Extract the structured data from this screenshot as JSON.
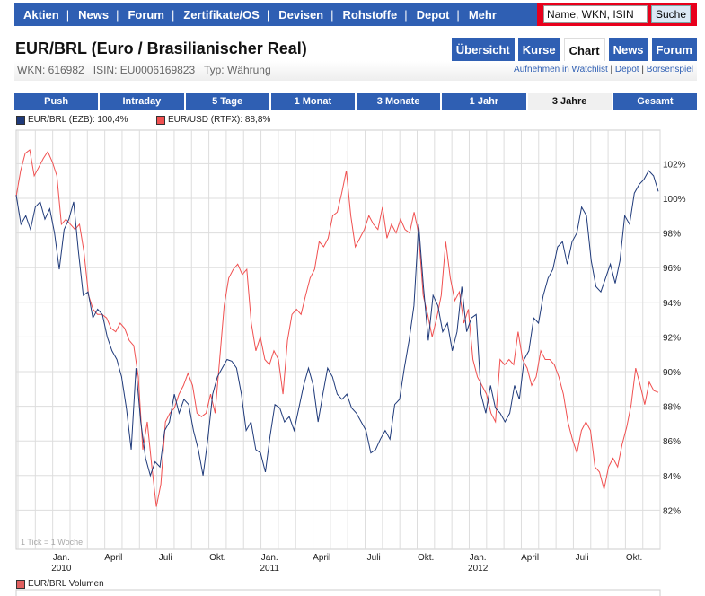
{
  "nav": {
    "items": [
      "Aktien",
      "News",
      "Forum",
      "Zertifikate/OS",
      "Devisen",
      "Rohstoffe",
      "Depot",
      "Mehr"
    ],
    "search_placeholder": "Name, WKN, ISIN",
    "search_button": "Suche"
  },
  "title": "EUR/BRL (Euro / Brasilianischer Real)",
  "tabs": [
    "Übersicht",
    "Kurse",
    "Chart",
    "News",
    "Forum"
  ],
  "active_tab": "Chart",
  "info": {
    "wkn": "WKN: 616982",
    "isin": "ISIN: EU0006169823",
    "typ": "Typ: Währung",
    "link_watchlist": "Aufnehmen in Watchlist",
    "link_depot": "Depot",
    "link_boersenspiel": "Börsenspiel"
  },
  "periods": [
    "Push",
    "Intraday",
    "5 Tage",
    "1 Monat",
    "3 Monate",
    "1 Jahr",
    "3 Jahre",
    "Gesamt"
  ],
  "active_period": "3 Jahre",
  "volume_legend": "EUR/BRL Volumen",
  "chart_data": {
    "type": "line",
    "ylim": [
      80.5,
      104
    ],
    "yticks": [
      82,
      84,
      86,
      88,
      90,
      92,
      94,
      96,
      98,
      100,
      102
    ],
    "ytick_labels": [
      "82%",
      "84%",
      "86%",
      "88%",
      "90%",
      "92%",
      "94%",
      "96%",
      "98%",
      "100%",
      "102%"
    ],
    "xticks": [
      {
        "label": "Jan.",
        "sub": "2010",
        "month": 3
      },
      {
        "label": "April",
        "month": 6
      },
      {
        "label": "Juli",
        "month": 9
      },
      {
        "label": "Okt.",
        "month": 12
      },
      {
        "label": "Jan.",
        "sub": "2011",
        "month": 15
      },
      {
        "label": "April",
        "month": 18
      },
      {
        "label": "Juli",
        "month": 21
      },
      {
        "label": "Okt.",
        "month": 24
      },
      {
        "label": "Jan.",
        "sub": "2012",
        "month": 27
      },
      {
        "label": "April",
        "month": 30
      },
      {
        "label": "Juli",
        "month": 33
      },
      {
        "label": "Okt.",
        "month": 36
      }
    ],
    "months_total": 37.1,
    "note": "1 Tick = 1 Woche",
    "series": [
      {
        "name": "EUR/BRL (EZB): 100,4%",
        "color": "#1f3a7a",
        "values": [
          100.2,
          98.5,
          99.0,
          98.2,
          99.5,
          99.8,
          98.8,
          99.4,
          98.0,
          95.9,
          98.2,
          98.8,
          99.8,
          96.9,
          94.4,
          94.6,
          93.1,
          93.6,
          93.3,
          92.0,
          91.2,
          90.7,
          89.7,
          87.9,
          85.5,
          90.2,
          87.1,
          85.0,
          84.0,
          84.8,
          84.5,
          86.6,
          87.1,
          88.7,
          87.6,
          88.4,
          88.1,
          86.6,
          85.5,
          84.0,
          86.1,
          88.7,
          89.7,
          90.2,
          90.7,
          90.6,
          90.2,
          88.7,
          86.6,
          87.1,
          85.5,
          85.3,
          84.2,
          86.3,
          88.1,
          87.9,
          87.1,
          87.4,
          86.6,
          87.9,
          89.2,
          90.2,
          89.2,
          87.1,
          88.7,
          90.2,
          89.7,
          88.7,
          88.4,
          88.7,
          87.9,
          87.6,
          87.1,
          86.6,
          85.3,
          85.5,
          86.1,
          86.6,
          86.1,
          88.1,
          88.4,
          90.2,
          91.8,
          93.8,
          98.5,
          94.9,
          91.8,
          94.4,
          93.8,
          92.3,
          92.8,
          91.2,
          92.3,
          94.9,
          92.3,
          93.1,
          93.3,
          88.7,
          87.6,
          89.2,
          87.9,
          87.6,
          87.1,
          87.6,
          89.2,
          88.4,
          90.7,
          91.2,
          93.1,
          92.8,
          94.4,
          95.4,
          95.9,
          97.2,
          97.5,
          96.2,
          97.5,
          98.0,
          99.5,
          99.0,
          96.4,
          94.9,
          94.6,
          95.4,
          96.2,
          95.1,
          96.4,
          99.0,
          98.5,
          100.3,
          100.8,
          101.1,
          101.6,
          101.3,
          100.4
        ]
      },
      {
        "name": "EUR/USD (RTFX): 88,8%",
        "color": "#f05050",
        "values": [
          100.1,
          101.6,
          102.6,
          102.8,
          101.3,
          101.8,
          102.3,
          102.7,
          102.1,
          101.3,
          98.5,
          98.8,
          98.5,
          98.2,
          98.5,
          96.9,
          94.4,
          93.6,
          93.3,
          93.3,
          93.1,
          92.5,
          92.3,
          92.8,
          92.5,
          91.8,
          91.5,
          89.7,
          85.5,
          87.1,
          84.5,
          82.2,
          83.5,
          87.1,
          87.6,
          87.9,
          88.7,
          89.2,
          89.9,
          89.2,
          87.6,
          87.4,
          87.6,
          88.7,
          87.6,
          90.7,
          93.8,
          95.4,
          95.9,
          96.2,
          95.6,
          95.9,
          92.8,
          91.2,
          92.0,
          90.7,
          90.4,
          91.2,
          90.7,
          88.7,
          91.8,
          93.3,
          93.6,
          93.3,
          94.4,
          95.4,
          95.9,
          97.5,
          97.2,
          97.7,
          99.0,
          99.2,
          100.3,
          101.6,
          99.0,
          97.2,
          97.7,
          98.2,
          99.0,
          98.5,
          98.2,
          99.5,
          97.7,
          98.5,
          98.0,
          98.8,
          98.2,
          98.0,
          99.2,
          98.0,
          94.4,
          93.3,
          92.0,
          93.1,
          94.4,
          97.5,
          95.4,
          94.1,
          94.6,
          92.8,
          93.6,
          90.7,
          89.7,
          89.2,
          88.7,
          87.6,
          87.1,
          90.7,
          90.4,
          90.7,
          90.4,
          92.3,
          90.7,
          90.2,
          89.2,
          89.7,
          91.2,
          90.7,
          90.7,
          90.4,
          89.7,
          88.7,
          87.1,
          86.1,
          85.3,
          86.6,
          87.1,
          86.6,
          84.5,
          84.2,
          83.2,
          84.5,
          85.0,
          84.5,
          85.8,
          86.8,
          88.1,
          90.2,
          89.2,
          88.1,
          89.4,
          88.9,
          88.8
        ]
      }
    ]
  }
}
